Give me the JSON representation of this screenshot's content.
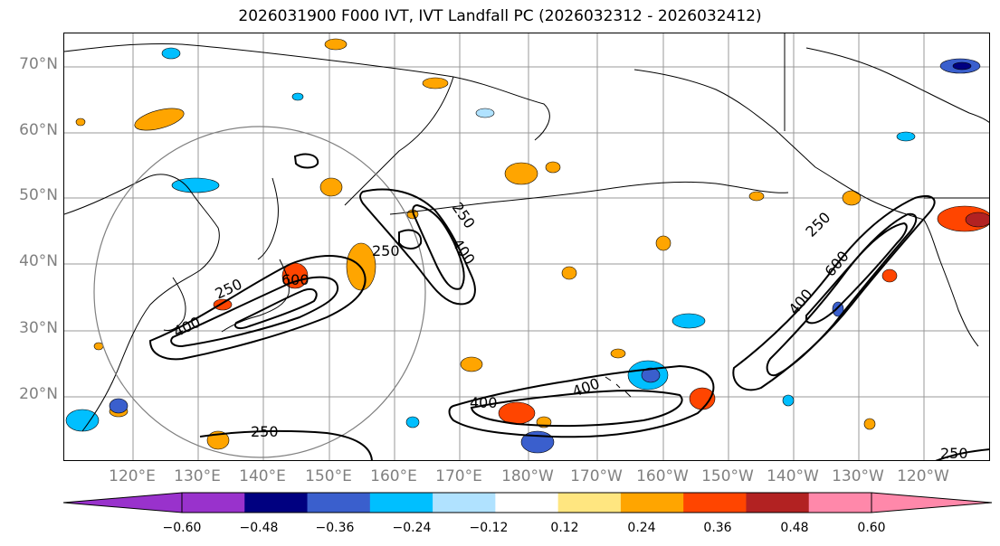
{
  "figure": {
    "title": "2026031900 F000 IVT, IVT Landfall PC (2026032312 - 2026032412)"
  },
  "axes": {
    "lat_labels": [
      "70°N",
      "60°N",
      "50°N",
      "40°N",
      "30°N",
      "20°N"
    ],
    "lon_labels": [
      "120°E",
      "130°E",
      "140°E",
      "150°E",
      "160°E",
      "170°E",
      "180°W",
      "170°W",
      "160°W",
      "150°W",
      "140°W",
      "130°W",
      "120°W"
    ]
  },
  "contour_labels": [
    "250",
    "400",
    "600",
    "250",
    "400",
    "250",
    "400",
    "600",
    "400",
    "250",
    "400",
    "250",
    "250"
  ],
  "colorbar": {
    "ticks": [
      "−0.60",
      "−0.48",
      "−0.36",
      "−0.24",
      "−0.12",
      "0.12",
      "0.24",
      "0.36",
      "0.48",
      "0.60"
    ],
    "colors": [
      "#000080",
      "#3a5fcd",
      "#00bfff",
      "#b0e2ff",
      "#ffffff",
      "#ffe680",
      "#ffa500",
      "#ff4500",
      "#b22222"
    ],
    "under_color": "#9932cc",
    "over_color": "#ff88aa"
  }
}
